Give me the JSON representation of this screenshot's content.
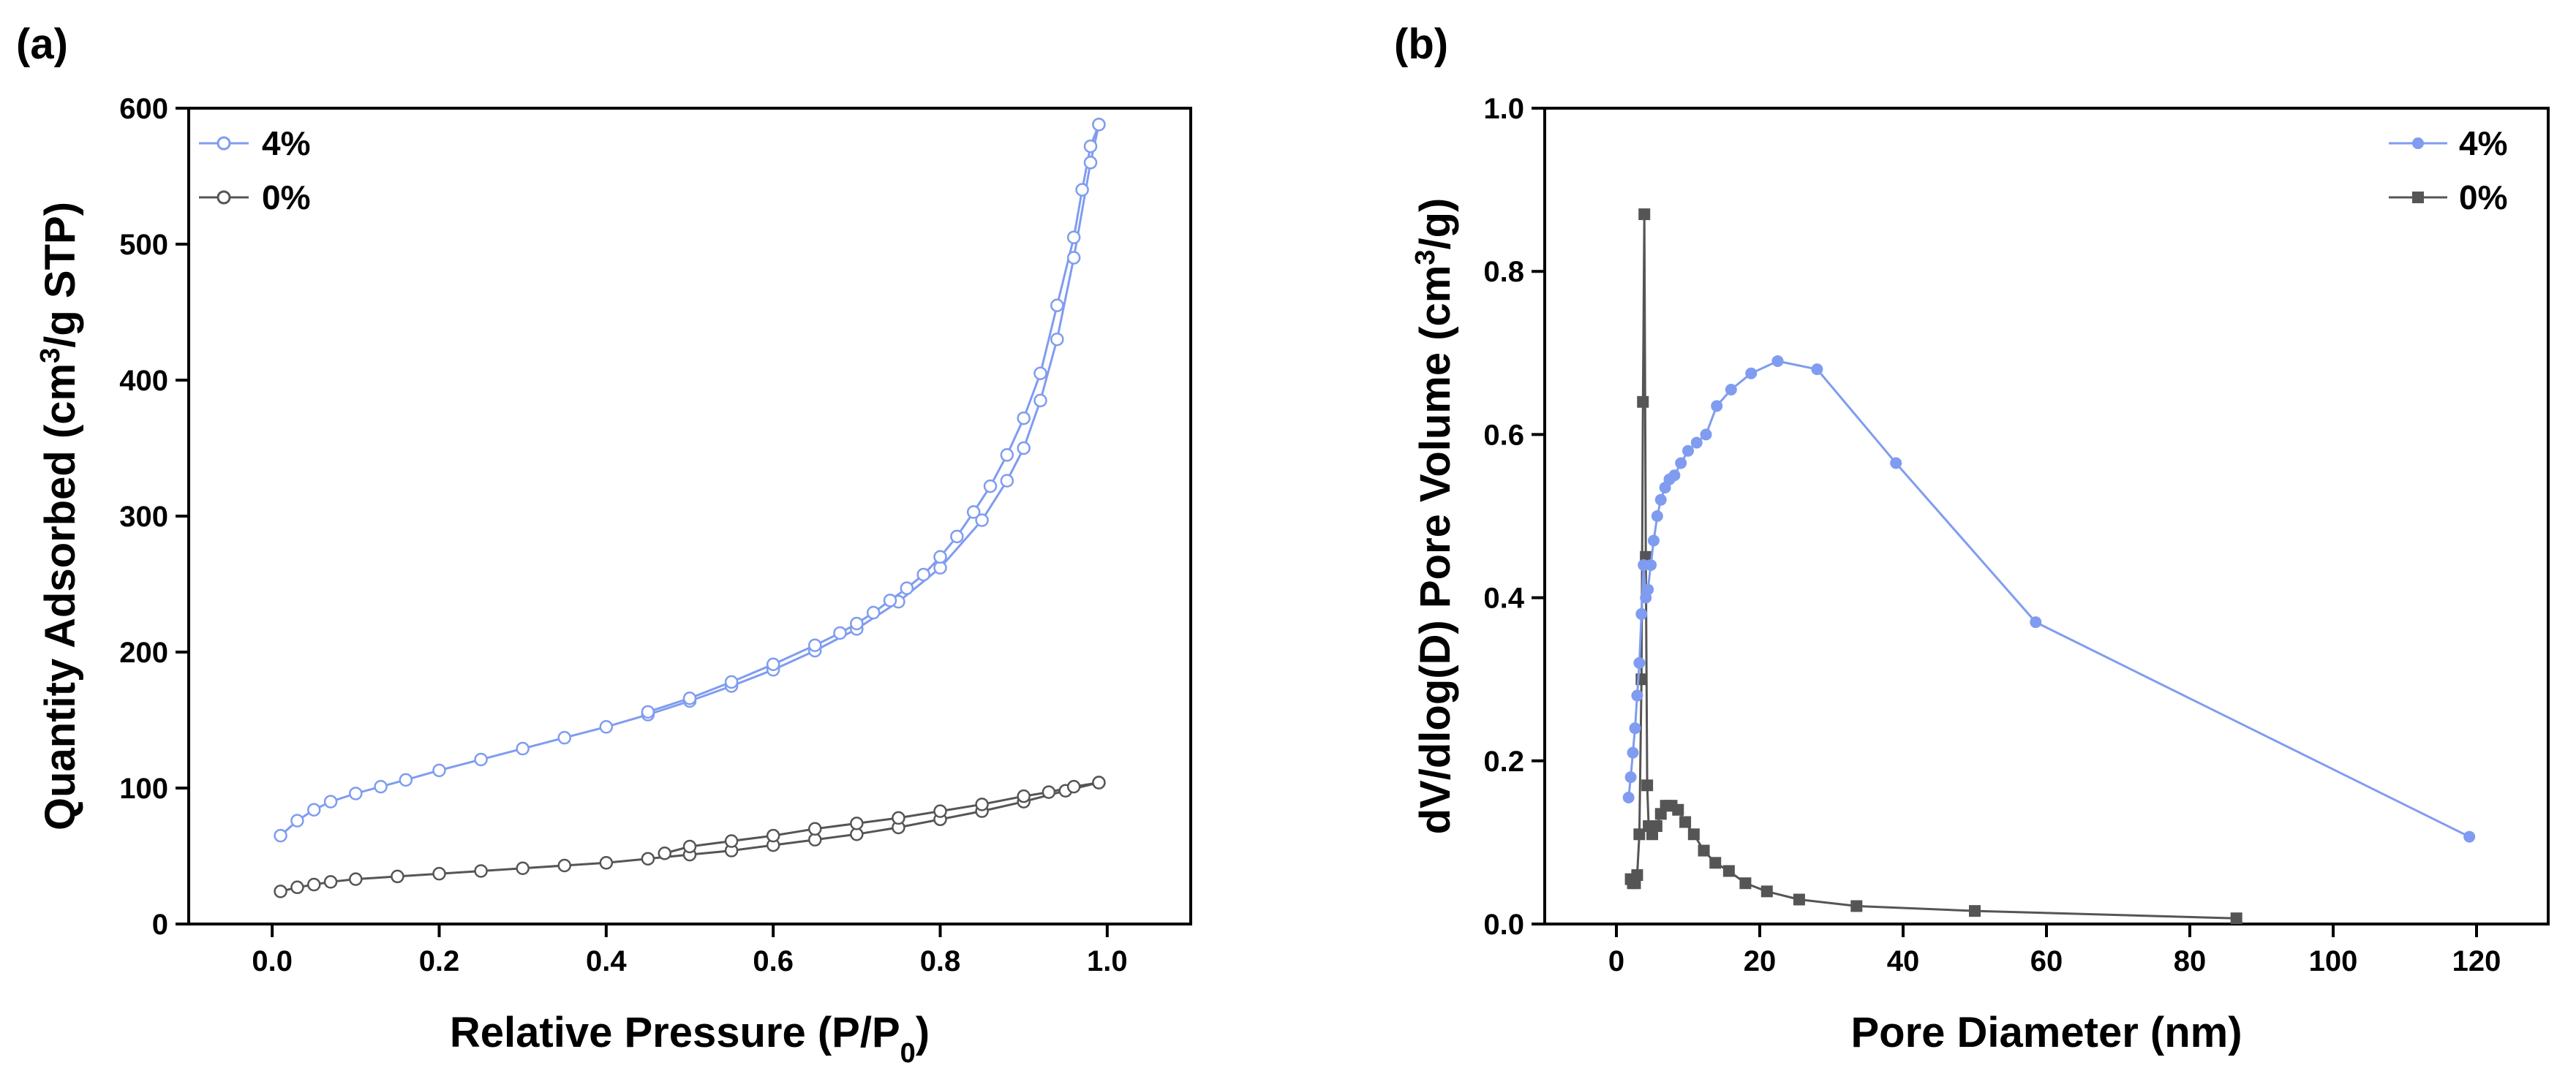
{
  "chart_data": [
    {
      "panel": "(a)",
      "type": "line",
      "xlabel": "Relative Pressure (P/P0)",
      "xlabel_main": "Relative Pressure (P/P",
      "xlabel_sub": "0",
      "xlabel_tail": ")",
      "ylabel": "Quantity Adsorbed (cm3/g STP)",
      "ylabel_main": "Quantity Adsorbed (cm",
      "ylabel_sup": "3",
      "ylabel_tail": "/g STP)",
      "xlim": [
        -0.1,
        1.1
      ],
      "ylim": [
        0,
        600
      ],
      "xticks": [
        0.0,
        0.2,
        0.4,
        0.6,
        0.8,
        1.0
      ],
      "xtick_labels": [
        "0.0",
        "0.2",
        "0.4",
        "0.6",
        "0.8",
        "1.0"
      ],
      "yticks": [
        0,
        100,
        200,
        300,
        400,
        500,
        600
      ],
      "ytick_labels": [
        "0",
        "100",
        "200",
        "300",
        "400",
        "500",
        "600"
      ],
      "legend_position": "top-left",
      "series": [
        {
          "name": "4%",
          "color": "#7f9cf0",
          "marker": "open-circle",
          "adsorption": [
            [
              0.01,
              65
            ],
            [
              0.03,
              76
            ],
            [
              0.05,
              84
            ],
            [
              0.07,
              90
            ],
            [
              0.1,
              96
            ],
            [
              0.13,
              101
            ],
            [
              0.16,
              106
            ],
            [
              0.2,
              113
            ],
            [
              0.25,
              121
            ],
            [
              0.3,
              129
            ],
            [
              0.35,
              137
            ],
            [
              0.4,
              145
            ],
            [
              0.45,
              154
            ],
            [
              0.5,
              164
            ],
            [
              0.55,
              175
            ],
            [
              0.6,
              187
            ],
            [
              0.65,
              201
            ],
            [
              0.7,
              217
            ],
            [
              0.75,
              237
            ],
            [
              0.8,
              262
            ],
            [
              0.85,
              297
            ],
            [
              0.88,
              326
            ],
            [
              0.9,
              350
            ],
            [
              0.92,
              385
            ],
            [
              0.94,
              430
            ],
            [
              0.96,
              490
            ],
            [
              0.98,
              560
            ],
            [
              0.99,
              588
            ]
          ],
          "desorption": [
            [
              0.99,
              588
            ],
            [
              0.98,
              572
            ],
            [
              0.97,
              540
            ],
            [
              0.96,
              505
            ],
            [
              0.94,
              455
            ],
            [
              0.92,
              405
            ],
            [
              0.9,
              372
            ],
            [
              0.88,
              345
            ],
            [
              0.86,
              322
            ],
            [
              0.84,
              303
            ],
            [
              0.82,
              285
            ],
            [
              0.8,
              270
            ],
            [
              0.78,
              257
            ],
            [
              0.76,
              247
            ],
            [
              0.74,
              238
            ],
            [
              0.72,
              229
            ],
            [
              0.7,
              221
            ],
            [
              0.68,
              214
            ],
            [
              0.65,
              205
            ],
            [
              0.6,
              191
            ],
            [
              0.55,
              178
            ],
            [
              0.5,
              166
            ],
            [
              0.45,
              156
            ]
          ]
        },
        {
          "name": "0%",
          "color": "#555555",
          "marker": "open-circle",
          "adsorption": [
            [
              0.01,
              24
            ],
            [
              0.03,
              27
            ],
            [
              0.05,
              29
            ],
            [
              0.07,
              31
            ],
            [
              0.1,
              33
            ],
            [
              0.15,
              35
            ],
            [
              0.2,
              37
            ],
            [
              0.25,
              39
            ],
            [
              0.3,
              41
            ],
            [
              0.35,
              43
            ],
            [
              0.4,
              45
            ],
            [
              0.45,
              48
            ],
            [
              0.5,
              51
            ],
            [
              0.55,
              54
            ],
            [
              0.6,
              58
            ],
            [
              0.65,
              62
            ],
            [
              0.7,
              66
            ],
            [
              0.75,
              71
            ],
            [
              0.8,
              77
            ],
            [
              0.85,
              83
            ],
            [
              0.9,
              90
            ],
            [
              0.95,
              98
            ],
            [
              0.99,
              104
            ]
          ],
          "desorption": [
            [
              0.99,
              104
            ],
            [
              0.96,
              101
            ],
            [
              0.93,
              97
            ],
            [
              0.9,
              94
            ],
            [
              0.85,
              88
            ],
            [
              0.8,
              83
            ],
            [
              0.75,
              78
            ],
            [
              0.7,
              74
            ],
            [
              0.65,
              70
            ],
            [
              0.6,
              65
            ],
            [
              0.55,
              61
            ],
            [
              0.5,
              57
            ],
            [
              0.47,
              52
            ]
          ]
        }
      ]
    },
    {
      "panel": "(b)",
      "type": "line",
      "xlabel": "Pore Diameter (nm)",
      "ylabel": "dV/dlog(D) Pore Volume (cm3/g)",
      "ylabel_main": "dV/dlog(D) Pore Volume (cm",
      "ylabel_sup": "3",
      "ylabel_tail": "/g)",
      "xlim": [
        -10,
        130
      ],
      "ylim": [
        0,
        1.0
      ],
      "xticks": [
        0,
        20,
        40,
        60,
        80,
        100,
        120
      ],
      "xtick_labels": [
        "0",
        "20",
        "40",
        "60",
        "80",
        "100",
        "120"
      ],
      "yticks": [
        0,
        0.2,
        0.4,
        0.6,
        0.8,
        1.0
      ],
      "ytick_labels": [
        "0.0",
        "0.2",
        "0.4",
        "0.6",
        "0.8",
        "1.0"
      ],
      "legend_position": "top-right",
      "series": [
        {
          "name": "4%",
          "color": "#7f9cf0",
          "marker": "filled-circle",
          "points": [
            [
              1.7,
              0.155
            ],
            [
              2.0,
              0.18
            ],
            [
              2.3,
              0.21
            ],
            [
              2.6,
              0.24
            ],
            [
              2.9,
              0.28
            ],
            [
              3.2,
              0.32
            ],
            [
              3.5,
              0.38
            ],
            [
              3.8,
              0.44
            ],
            [
              4.1,
              0.4
            ],
            [
              4.4,
              0.41
            ],
            [
              4.8,
              0.44
            ],
            [
              5.2,
              0.47
            ],
            [
              5.7,
              0.5
            ],
            [
              6.2,
              0.52
            ],
            [
              6.8,
              0.535
            ],
            [
              7.4,
              0.545
            ],
            [
              8.1,
              0.55
            ],
            [
              9.0,
              0.565
            ],
            [
              10.0,
              0.58
            ],
            [
              11.2,
              0.59
            ],
            [
              12.5,
              0.6
            ],
            [
              14.0,
              0.635
            ],
            [
              16.0,
              0.655
            ],
            [
              18.8,
              0.675
            ],
            [
              22.5,
              0.69
            ],
            [
              28.0,
              0.68
            ],
            [
              39.0,
              0.565
            ],
            [
              58.5,
              0.37
            ],
            [
              119.0,
              0.107
            ]
          ]
        },
        {
          "name": "0%",
          "color": "#555555",
          "marker": "filled-square",
          "points": [
            [
              2.0,
              0.055
            ],
            [
              2.3,
              0.05
            ],
            [
              2.6,
              0.05
            ],
            [
              2.9,
              0.06
            ],
            [
              3.2,
              0.11
            ],
            [
              3.5,
              0.3
            ],
            [
              3.7,
              0.64
            ],
            [
              3.9,
              0.87
            ],
            [
              4.1,
              0.45
            ],
            [
              4.3,
              0.17
            ],
            [
              4.5,
              0.12
            ],
            [
              5.0,
              0.11
            ],
            [
              5.6,
              0.12
            ],
            [
              6.2,
              0.135
            ],
            [
              6.9,
              0.145
            ],
            [
              7.7,
              0.145
            ],
            [
              8.6,
              0.14
            ],
            [
              9.6,
              0.125
            ],
            [
              10.8,
              0.11
            ],
            [
              12.2,
              0.09
            ],
            [
              13.8,
              0.075
            ],
            [
              15.7,
              0.065
            ],
            [
              18.0,
              0.05
            ],
            [
              21.0,
              0.04
            ],
            [
              25.5,
              0.03
            ],
            [
              33.5,
              0.022
            ],
            [
              50.0,
              0.016
            ],
            [
              86.5,
              0.007
            ]
          ]
        }
      ]
    }
  ]
}
